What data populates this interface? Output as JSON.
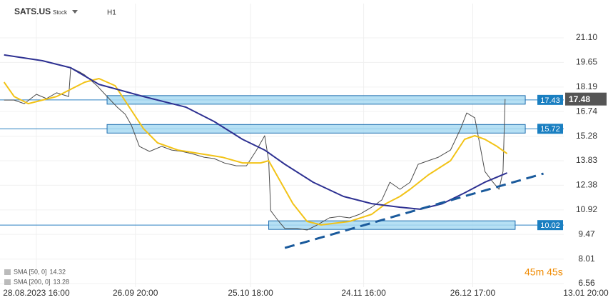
{
  "chart_data": {
    "type": "line",
    "symbol": "SATS.US",
    "instrument_type": "Stock",
    "interval": "H1",
    "countdown": "45m 45s",
    "xlim": [
      0,
      290
    ],
    "ylim": [
      6.35,
      23.13
    ],
    "grid": true,
    "xticks": [
      {
        "value": 18,
        "label": "28.08.2023 16:00"
      },
      {
        "value": 67,
        "label": "26.09 20:00"
      },
      {
        "value": 124,
        "label": "25.10 18:00"
      },
      {
        "value": 180,
        "label": "24.11 16:00"
      },
      {
        "value": 234,
        "label": "26.12 17:00"
      },
      {
        "value": 290,
        "label": "13.01 20:00"
      }
    ],
    "yticks": [
      {
        "value": 21.1,
        "label": "21.10"
      },
      19.65,
      18.19,
      16.74,
      15.28,
      13.83,
      12.38,
      10.92,
      9.47,
      8.01,
      6.56
    ],
    "last_price": 17.48,
    "series": [
      {
        "name": "Price",
        "color": "#4d4d4d",
        "x": [
          2,
          7,
          12,
          18,
          23,
          28,
          34,
          35,
          39,
          42,
          48,
          53,
          58,
          62,
          65,
          69,
          74,
          80,
          85,
          90,
          95,
          101,
          106,
          111,
          117,
          122,
          127,
          131,
          133,
          134,
          138,
          141,
          147,
          152,
          157,
          163,
          168,
          173,
          178,
          184,
          189,
          193,
          198,
          203,
          207,
          212,
          217,
          223,
          228,
          231,
          235,
          237,
          240,
          244,
          247,
          249,
          250
        ],
        "values": [
          17.42,
          17.42,
          17.21,
          17.76,
          17.51,
          17.85,
          17.63,
          19.33,
          19.11,
          18.9,
          18.27,
          17.63,
          17.0,
          16.58,
          15.94,
          14.68,
          14.38,
          14.68,
          14.46,
          14.38,
          14.25,
          14.04,
          13.96,
          13.7,
          13.53,
          13.53,
          14.46,
          15.31,
          13.83,
          10.87,
          10.24,
          9.82,
          9.82,
          9.73,
          10.03,
          10.45,
          10.53,
          10.45,
          10.66,
          11.08,
          11.51,
          12.56,
          12.14,
          12.56,
          13.62,
          13.83,
          14.04,
          14.46,
          15.73,
          16.66,
          16.37,
          15.1,
          13.2,
          12.56,
          12.14,
          13.2,
          17.48
        ]
      },
      {
        "name": "SMA [50, 0]",
        "color": "#f2c318",
        "last_value": 14.32,
        "x": [
          2,
          7,
          14,
          21,
          28,
          35,
          42,
          49,
          57,
          64,
          71,
          78,
          88,
          99,
          110,
          120,
          129,
          133,
          138,
          145,
          152,
          159,
          173,
          184,
          191,
          198,
          203,
          212,
          223,
          230,
          235,
          240,
          246,
          251
        ],
        "values": [
          18.48,
          17.63,
          17.21,
          17.42,
          17.63,
          18.06,
          18.48,
          18.69,
          18.27,
          17.0,
          15.73,
          14.89,
          14.46,
          14.25,
          14.04,
          13.7,
          13.7,
          13.83,
          12.77,
          11.29,
          10.24,
          10.03,
          10.24,
          10.66,
          11.29,
          11.72,
          12.14,
          12.99,
          13.83,
          15.1,
          15.31,
          15.1,
          14.68,
          14.25
        ]
      },
      {
        "name": "SMA [200, 0]",
        "color": "#2e3192",
        "last_value": 13.28,
        "x": [
          2,
          21,
          35,
          49,
          71,
          92,
          106,
          120,
          131,
          141,
          155,
          170,
          184,
          198,
          208,
          219,
          230,
          240,
          251
        ],
        "values": [
          20.09,
          19.75,
          19.33,
          18.35,
          17.63,
          17.0,
          16.15,
          15.1,
          14.46,
          13.62,
          12.56,
          11.72,
          11.29,
          11.08,
          10.96,
          11.29,
          11.93,
          12.56,
          13.11
        ]
      }
    ],
    "levels": [
      {
        "value": 17.43,
        "x_from": 53,
        "x_to": 260
      },
      {
        "value": 15.72,
        "x_from": 53,
        "x_to": 260
      },
      {
        "value": 10.02,
        "x_from": 133,
        "x_to": 255
      }
    ],
    "trendline": {
      "x": [
        141,
        269
      ],
      "values": [
        8.67,
        13.07
      ]
    }
  }
}
